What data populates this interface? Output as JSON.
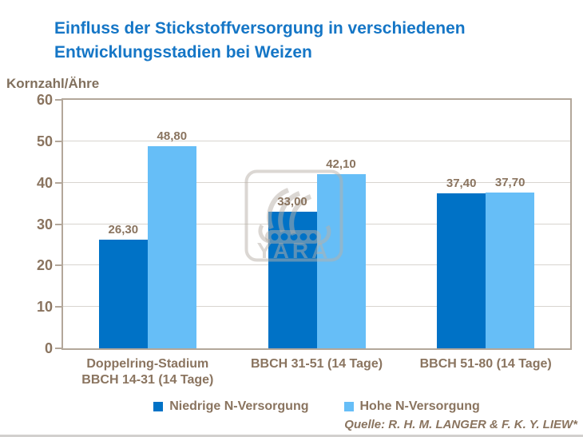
{
  "title": "Einfluss der Stickstoffversorgung in verschiedenen Entwicklungsstadien bei Weizen",
  "y_axis_label": "Kornzahl/Ähre",
  "source": "Quelle: R. H. M. LANGER & F. K. Y. LIEW*",
  "watermark_text": "YARA",
  "colors": {
    "title": "#1576C6",
    "axis_text": "#8A745F",
    "plot_border": "#B3A79A",
    "gridline": "#D8D4CF",
    "series_dark": "#0072C6",
    "series_light": "#66BEF7",
    "watermark": "rgba(184,176,168,0.5)"
  },
  "chart_data": {
    "type": "bar",
    "title": "Einfluss der Stickstoffversorgung in verschiedenen Entwicklungsstadien bei Weizen",
    "xlabel": "",
    "ylabel": "Kornzahl/Ähre",
    "ylim": [
      0,
      60
    ],
    "ytick_step": 10,
    "ytick_labels": [
      "0",
      "10",
      "20",
      "30",
      "40",
      "50",
      "60"
    ],
    "grid": true,
    "legend_position": "bottom",
    "categories": [
      "Doppelring-Stadium\nBBCH 14-31 (14 Tage)",
      "BBCH 31-51 (14 Tage)",
      "BBCH 51-80 (14 Tage)"
    ],
    "series": [
      {
        "name": "Niedrige N-Versorgung",
        "color": "#0072C6",
        "values": [
          26.3,
          33.0,
          37.4
        ],
        "labels": [
          "26,30",
          "33,00",
          "37,40"
        ]
      },
      {
        "name": "Hohe N-Versorgung",
        "color": "#66BEF7",
        "values": [
          48.8,
          42.1,
          37.7
        ],
        "labels": [
          "48,80",
          "42,10",
          "37,70"
        ]
      }
    ]
  }
}
